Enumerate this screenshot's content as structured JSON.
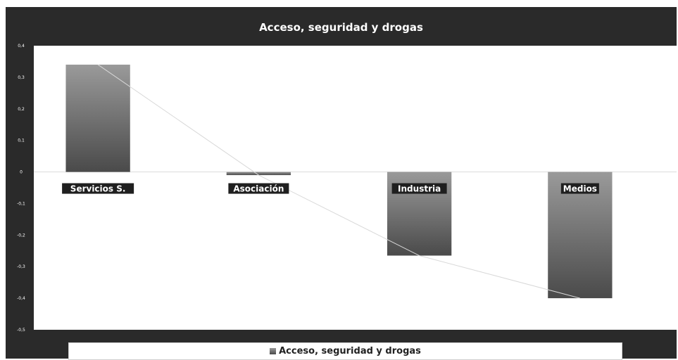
{
  "chart_data": {
    "type": "bar",
    "title": "Acceso, seguridad y drogas",
    "categories": [
      "Servicios S.",
      "Asociación",
      "Industria",
      "Medios"
    ],
    "series": [
      {
        "name": "Acceso, seguridad y drogas",
        "values": [
          0.34,
          -0.01,
          -0.265,
          -0.4
        ]
      }
    ],
    "trend_line": true,
    "xlabel": "",
    "ylabel": "",
    "ylim": [
      -0.5,
      0.4
    ],
    "y_ticks": [
      "0,4",
      "0,3",
      "0,2",
      "0,1",
      "0",
      "-0,1",
      "-0,2",
      "-0,3",
      "-0,4",
      "-0,5"
    ],
    "grid": false,
    "legend_position": "bottom",
    "colors": {
      "frame": "#2a2a2a",
      "plot_bg": "#ffffff",
      "bar_top": "#9a9a9a",
      "bar_bottom": "#4a4a4a",
      "trend": "#dddddd"
    }
  }
}
